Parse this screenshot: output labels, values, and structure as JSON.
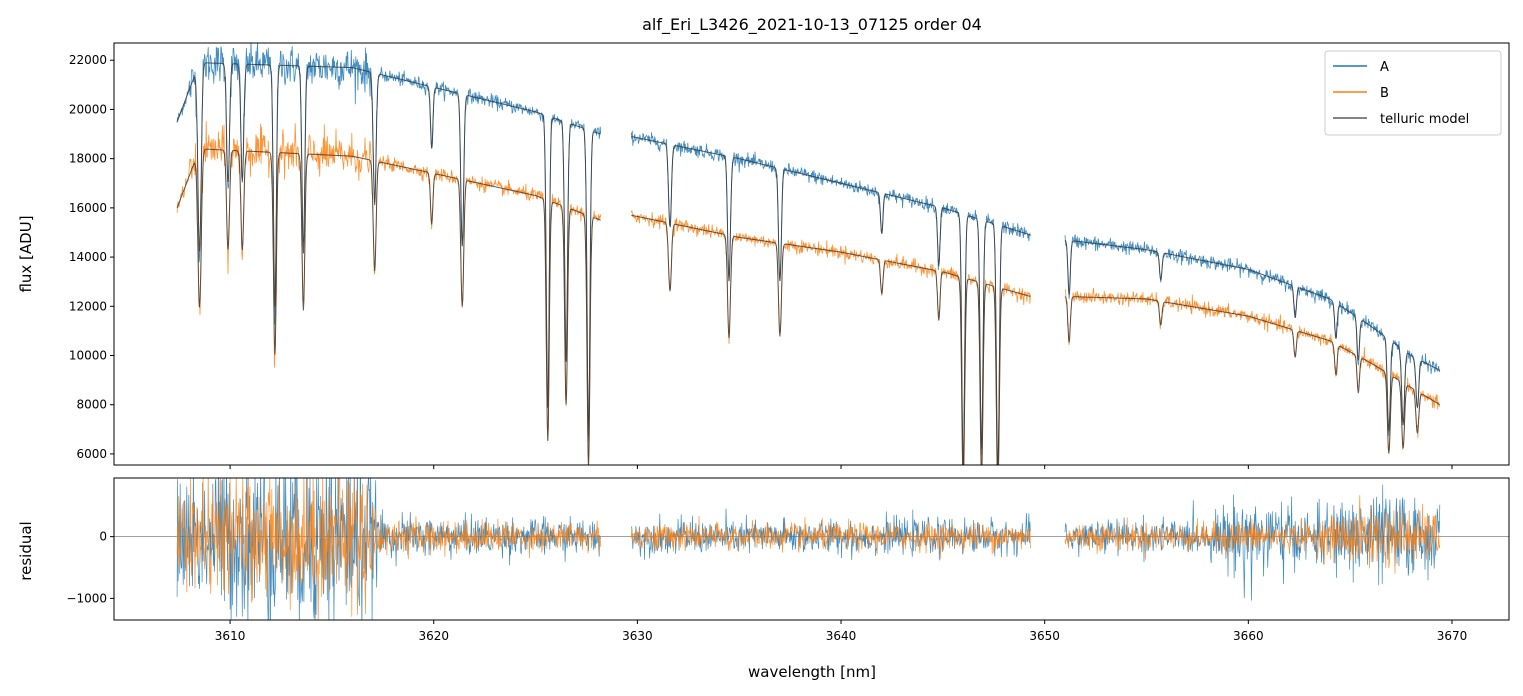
{
  "chart_data": {
    "type": "line",
    "title": "alf_Eri_L3426_2021-10-13_07125  order 04",
    "xlabel": "wavelength [nm]",
    "xlim": [
      3604.3,
      3672.8
    ],
    "x_ticks": [
      "3610",
      "3620",
      "3630",
      "3640",
      "3650",
      "3660",
      "3670"
    ],
    "x_tick_values": [
      3610,
      3620,
      3630,
      3640,
      3650,
      3660,
      3670
    ],
    "colors": {
      "A": "#1f77b4",
      "B": "#ff7f0e",
      "model": "#333333"
    },
    "legend": {
      "placement": "top-right",
      "entries": [
        {
          "key": "A",
          "label": "A"
        },
        {
          "key": "B",
          "label": "B"
        },
        {
          "key": "model",
          "label": "telluric model"
        }
      ]
    },
    "segments": [
      [
        3607.4,
        3628.2
      ],
      [
        3629.7,
        3649.3
      ],
      [
        3651.0,
        3669.4
      ]
    ],
    "absorption_lines": [
      {
        "x": 3608.5,
        "depth": 0.35,
        "w": 0.08
      },
      {
        "x": 3609.9,
        "depth": 0.22,
        "w": 0.07
      },
      {
        "x": 3610.6,
        "depth": 0.22,
        "w": 0.07
      },
      {
        "x": 3612.2,
        "depth": 0.45,
        "w": 0.07
      },
      {
        "x": 3613.6,
        "depth": 0.35,
        "w": 0.07
      },
      {
        "x": 3617.1,
        "depth": 0.25,
        "w": 0.07
      },
      {
        "x": 3619.9,
        "depth": 0.12,
        "w": 0.06
      },
      {
        "x": 3621.4,
        "depth": 0.3,
        "w": 0.07
      },
      {
        "x": 3625.6,
        "depth": 0.6,
        "w": 0.07
      },
      {
        "x": 3626.5,
        "depth": 0.5,
        "w": 0.07
      },
      {
        "x": 3627.6,
        "depth": 0.65,
        "w": 0.07
      },
      {
        "x": 3631.6,
        "depth": 0.18,
        "w": 0.07
      },
      {
        "x": 3634.5,
        "depth": 0.28,
        "w": 0.07
      },
      {
        "x": 3637.0,
        "depth": 0.26,
        "w": 0.07
      },
      {
        "x": 3642.0,
        "depth": 0.1,
        "w": 0.06
      },
      {
        "x": 3644.8,
        "depth": 0.15,
        "w": 0.06
      },
      {
        "x": 3646.0,
        "depth": 0.65,
        "w": 0.07
      },
      {
        "x": 3646.9,
        "depth": 0.6,
        "w": 0.07
      },
      {
        "x": 3647.7,
        "depth": 0.65,
        "w": 0.07
      },
      {
        "x": 3651.2,
        "depth": 0.15,
        "w": 0.06
      },
      {
        "x": 3655.7,
        "depth": 0.08,
        "w": 0.06
      },
      {
        "x": 3662.3,
        "depth": 0.1,
        "w": 0.06
      },
      {
        "x": 3664.3,
        "depth": 0.12,
        "w": 0.06
      },
      {
        "x": 3665.4,
        "depth": 0.15,
        "w": 0.06
      },
      {
        "x": 3666.9,
        "depth": 0.35,
        "w": 0.07
      },
      {
        "x": 3667.6,
        "depth": 0.3,
        "w": 0.07
      },
      {
        "x": 3668.3,
        "depth": 0.2,
        "w": 0.07
      }
    ],
    "panels": [
      {
        "key": "flux",
        "ylabel": "flux [ADU]",
        "ylim": [
          5550,
          22700
        ],
        "y_ticks": [
          "6000",
          "8000",
          "10000",
          "12000",
          "14000",
          "16000",
          "18000",
          "20000",
          "22000"
        ],
        "y_tick_values": [
          6000,
          8000,
          10000,
          12000,
          14000,
          16000,
          18000,
          20000,
          22000
        ],
        "series": [
          {
            "name": "A",
            "continuum": [
              [
                3607.4,
                19500
              ],
              [
                3608.5,
                21900
              ],
              [
                3616,
                21700
              ],
              [
                3620,
                20900
              ],
              [
                3625,
                19900
              ],
              [
                3628.2,
                19000
              ],
              [
                3629.7,
                18900
              ],
              [
                3635,
                18000
              ],
              [
                3640,
                17000
              ],
              [
                3645,
                16000
              ],
              [
                3649.3,
                14900
              ],
              [
                3651.0,
                14700
              ],
              [
                3655,
                14300
              ],
              [
                3660,
                13500
              ],
              [
                3664,
                12300
              ],
              [
                3666,
                11200
              ],
              [
                3668,
                10000
              ],
              [
                3669.4,
                9400
              ]
            ]
          },
          {
            "name": "B",
            "continuum": [
              [
                3607.4,
                16000
              ],
              [
                3608.5,
                18400
              ],
              [
                3616,
                18100
              ],
              [
                3620,
                17400
              ],
              [
                3625,
                16500
              ],
              [
                3628.2,
                15500
              ],
              [
                3629.7,
                15700
              ],
              [
                3635,
                14800
              ],
              [
                3640,
                14200
              ],
              [
                3645,
                13400
              ],
              [
                3649.3,
                12400
              ],
              [
                3651.0,
                12400
              ],
              [
                3655,
                12300
              ],
              [
                3660,
                11600
              ],
              [
                3664,
                10600
              ],
              [
                3666,
                9700
              ],
              [
                3668,
                8700
              ],
              [
                3669.4,
                8000
              ]
            ]
          }
        ]
      },
      {
        "key": "residual",
        "ylabel": "residual",
        "ylim": [
          -1350,
          950
        ],
        "y_ticks": [
          "−1000",
          "0"
        ],
        "y_tick_values": [
          -1000,
          0
        ],
        "series": [
          {
            "name": "A",
            "noise_profile": [
              [
                3607.4,
                900
              ],
              [
                3612,
                1400
              ],
              [
                3616.5,
                1400
              ],
              [
                3617.5,
                300
              ],
              [
                3628.2,
                250
              ],
              [
                3629.7,
                250
              ],
              [
                3649.3,
                250
              ],
              [
                3651.0,
                250
              ],
              [
                3658,
                250
              ],
              [
                3660,
                700
              ],
              [
                3663,
                350
              ],
              [
                3666,
                700
              ],
              [
                3669.4,
                500
              ]
            ]
          },
          {
            "name": "B",
            "noise_profile": [
              [
                3607.4,
                700
              ],
              [
                3612,
                900
              ],
              [
                3616.5,
                1100
              ],
              [
                3617.5,
                250
              ],
              [
                3628.2,
                200
              ],
              [
                3629.7,
                200
              ],
              [
                3649.3,
                200
              ],
              [
                3651.0,
                200
              ],
              [
                3658,
                200
              ],
              [
                3660,
                250
              ],
              [
                3663,
                200
              ],
              [
                3666,
                500
              ],
              [
                3669.4,
                350
              ]
            ]
          }
        ]
      }
    ]
  }
}
